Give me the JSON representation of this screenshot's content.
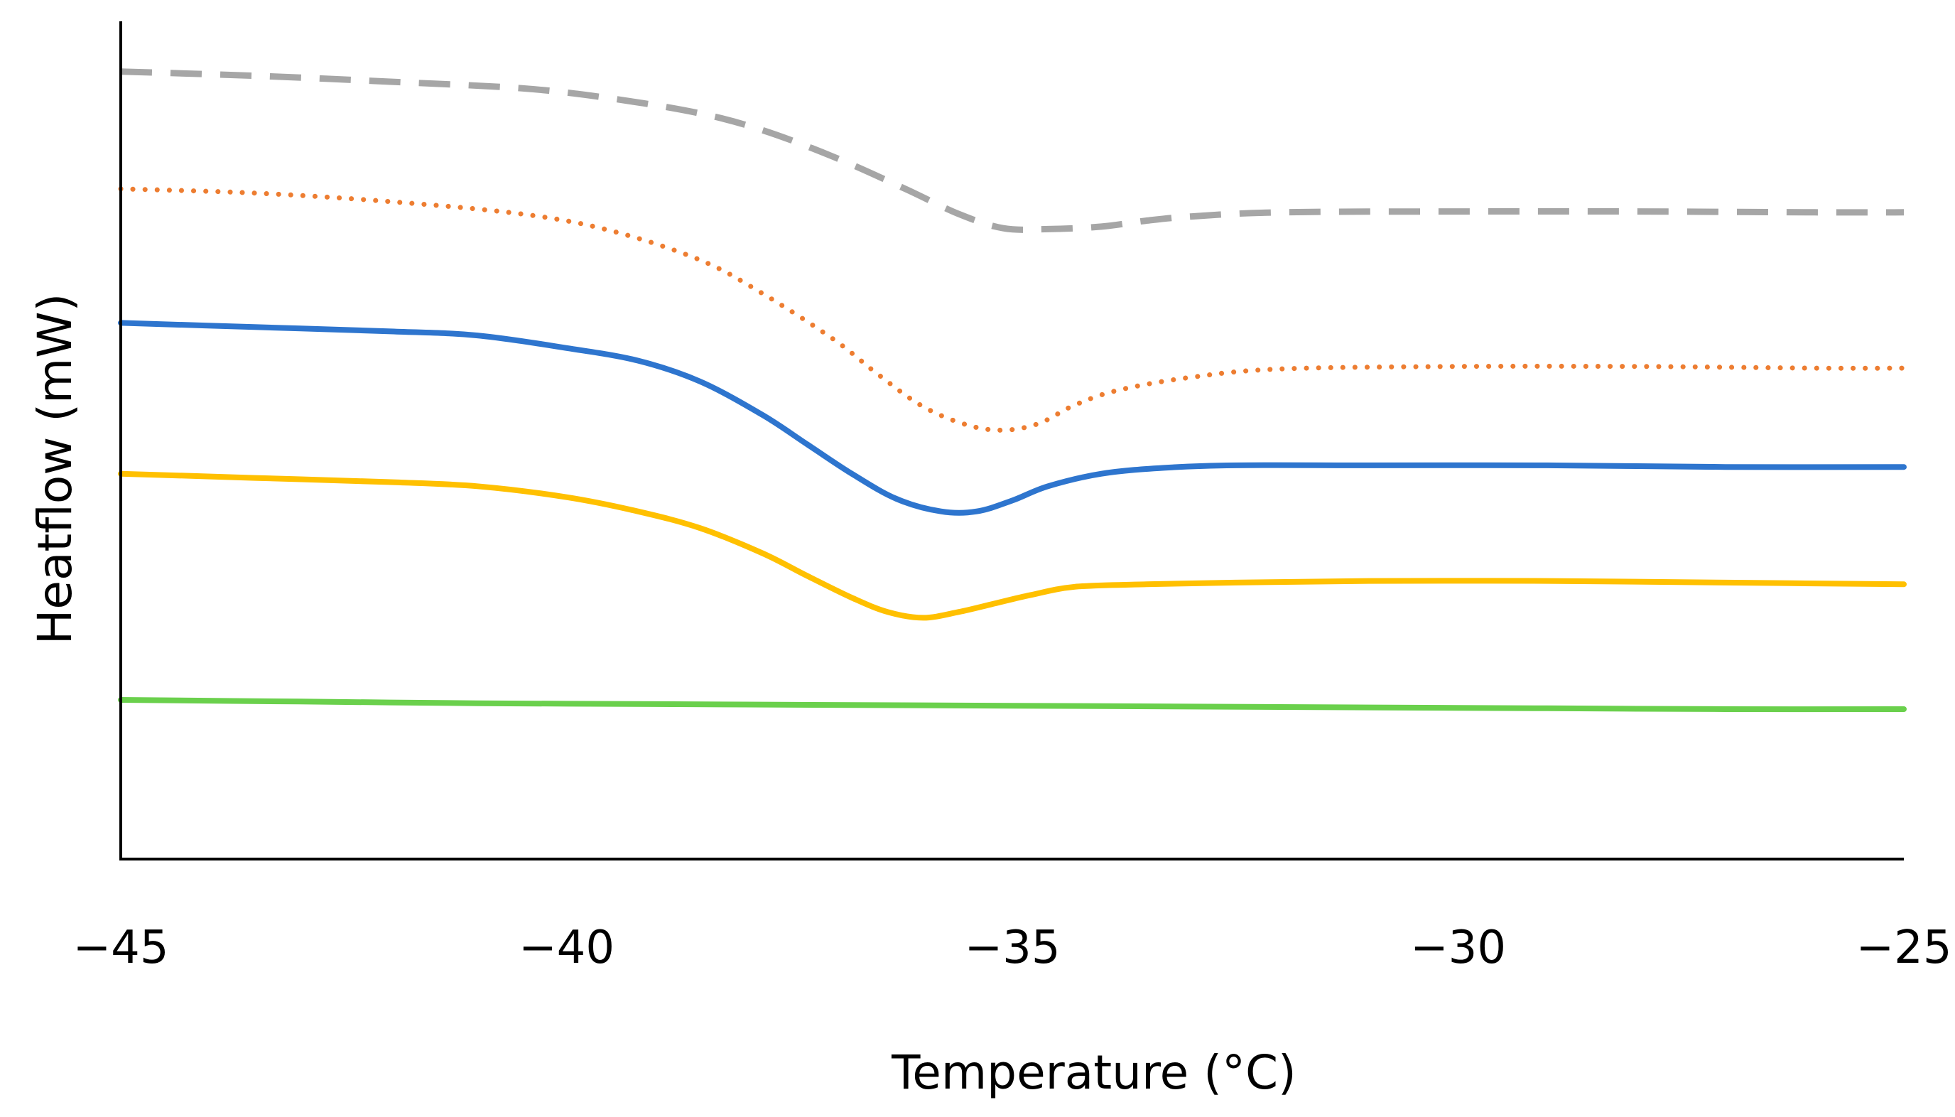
{
  "chart_data": {
    "type": "line",
    "title": "",
    "xlabel": "Temperature (°C)",
    "ylabel": "Heatflow (mW)",
    "xlim": [
      -45,
      -25
    ],
    "ylim": [
      0,
      10
    ],
    "xticks": [
      -45,
      -40,
      -35,
      -30,
      -25
    ],
    "xtick_labels": [
      "−45",
      "−40",
      "−35",
      "−30",
      "−25"
    ],
    "y_tick_labels_shown": false,
    "grid": false,
    "legend": "none",
    "series": [
      {
        "name": "gray dashed",
        "color": "#A6A6A6",
        "style": "dashed",
        "x": [
          -45,
          -43.5,
          -42,
          -40.5,
          -39.5,
          -38.5,
          -37.8,
          -37,
          -36.2,
          -35.6,
          -35.1,
          -34.6,
          -34.0,
          -33.5,
          -33,
          -32,
          -30,
          -28,
          -26,
          -25
        ],
        "y": [
          9.4,
          9.35,
          9.28,
          9.2,
          9.08,
          8.9,
          8.7,
          8.38,
          8.0,
          7.7,
          7.53,
          7.52,
          7.55,
          7.62,
          7.67,
          7.72,
          7.73,
          7.73,
          7.72,
          7.72
        ]
      },
      {
        "name": "orange dotted",
        "color": "#ED7D31",
        "style": "dotted",
        "x": [
          -45,
          -43.5,
          -42,
          -40.5,
          -39.5,
          -38.5,
          -37.8,
          -37,
          -36.5,
          -36,
          -35.5,
          -35.1,
          -34.7,
          -34.3,
          -33.8,
          -33,
          -32,
          -30,
          -28,
          -26,
          -25
        ],
        "y": [
          8.0,
          7.95,
          7.85,
          7.7,
          7.5,
          7.15,
          6.75,
          6.2,
          5.78,
          5.4,
          5.18,
          5.12,
          5.2,
          5.42,
          5.6,
          5.75,
          5.85,
          5.88,
          5.88,
          5.86,
          5.86
        ]
      },
      {
        "name": "blue solid",
        "color": "#2E75CE",
        "style": "solid",
        "x": [
          -45,
          -43.5,
          -42,
          -41,
          -40,
          -39.2,
          -38.5,
          -37.8,
          -37.3,
          -36.8,
          -36.3,
          -35.8,
          -35.4,
          -35.0,
          -34.6,
          -34.0,
          -33.3,
          -32.5,
          -31,
          -29,
          -27,
          -25
        ],
        "y": [
          6.4,
          6.35,
          6.3,
          6.25,
          6.1,
          5.95,
          5.7,
          5.3,
          4.95,
          4.6,
          4.3,
          4.15,
          4.15,
          4.28,
          4.45,
          4.6,
          4.67,
          4.7,
          4.7,
          4.7,
          4.68,
          4.68
        ]
      },
      {
        "name": "yellow solid",
        "color": "#FFC000",
        "style": "solid",
        "x": [
          -45,
          -43.5,
          -42,
          -41,
          -40,
          -39.2,
          -38.5,
          -37.8,
          -37.3,
          -36.8,
          -36.4,
          -36.0,
          -35.6,
          -35.2,
          -34.8,
          -34.3,
          -33.5,
          -32.5,
          -31,
          -29,
          -27,
          -25
        ],
        "y": [
          4.6,
          4.55,
          4.5,
          4.45,
          4.32,
          4.15,
          3.95,
          3.65,
          3.38,
          3.12,
          2.95,
          2.88,
          2.95,
          3.05,
          3.15,
          3.25,
          3.28,
          3.3,
          3.32,
          3.32,
          3.3,
          3.28
        ]
      },
      {
        "name": "green solid",
        "color": "#6AD04C",
        "style": "solid",
        "x": [
          -45,
          -43,
          -41,
          -39,
          -37,
          -35,
          -33,
          -31,
          -29,
          -27,
          -25
        ],
        "y": [
          1.9,
          1.88,
          1.86,
          1.85,
          1.84,
          1.83,
          1.82,
          1.81,
          1.8,
          1.79,
          1.79
        ]
      }
    ]
  }
}
